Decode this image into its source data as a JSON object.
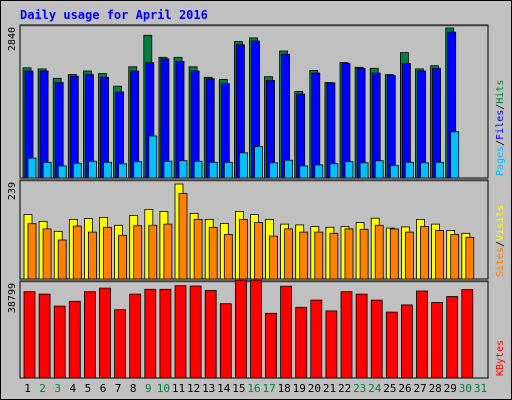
{
  "chart_data": [
    {
      "type": "bar",
      "panel": "top",
      "title": "Daily usage for April 2016",
      "ylabel_parts": [
        "Pages",
        "Files",
        "Hits"
      ],
      "ytick": "2840",
      "ymax": 2840,
      "categories": [
        "1",
        "2",
        "3",
        "4",
        "5",
        "6",
        "7",
        "8",
        "9",
        "10",
        "11",
        "12",
        "13",
        "14",
        "15",
        "16",
        "17",
        "18",
        "19",
        "20",
        "21",
        "22",
        "23",
        "24",
        "25",
        "26",
        "27",
        "28",
        "29",
        "30",
        "31"
      ],
      "weekend_days": [
        "2",
        "3",
        "9",
        "10",
        "16",
        "17",
        "23",
        "24",
        "30",
        "31"
      ],
      "series": [
        {
          "name": "Hits",
          "values": [
            2100,
            2080,
            1900,
            1970,
            2040,
            1990,
            1750,
            2120,
            2720,
            2300,
            2300,
            2120,
            1920,
            1880,
            2600,
            2670,
            1930,
            2420,
            1650,
            2050,
            1820,
            2200,
            2110,
            2090,
            1970,
            2390,
            2080,
            2140,
            2860,
            0,
            0
          ]
        },
        {
          "name": "Files",
          "values": [
            2040,
            2040,
            1820,
            1940,
            1970,
            1920,
            1640,
            2040,
            2200,
            2270,
            2220,
            2040,
            1890,
            1800,
            2540,
            2610,
            1860,
            2360,
            1600,
            2000,
            1810,
            2180,
            2090,
            2000,
            1950,
            2180,
            2040,
            2090,
            2780,
            0,
            0
          ]
        },
        {
          "name": "Pages",
          "values": [
            380,
            300,
            230,
            280,
            320,
            300,
            270,
            310,
            800,
            320,
            330,
            320,
            300,
            300,
            480,
            600,
            290,
            340,
            230,
            250,
            270,
            310,
            290,
            330,
            240,
            300,
            290,
            300,
            880,
            0,
            0
          ]
        }
      ],
      "colors": {
        "Hits": "#008040",
        "Files": "#0000ff",
        "Pages": "#00c0ff"
      }
    },
    {
      "type": "bar",
      "panel": "middle",
      "ylabel_parts": [
        "Sites",
        "Visits"
      ],
      "ytick": "239",
      "ymax": 239,
      "categories": [
        "1",
        "2",
        "3",
        "4",
        "5",
        "6",
        "7",
        "8",
        "9",
        "10",
        "11",
        "12",
        "13",
        "14",
        "15",
        "16",
        "17",
        "18",
        "19",
        "20",
        "21",
        "22",
        "23",
        "24",
        "25",
        "26",
        "27",
        "28",
        "29",
        "30",
        "31"
      ],
      "series": [
        {
          "name": "Visits",
          "values": [
            162,
            145,
            120,
            150,
            152,
            155,
            135,
            160,
            175,
            170,
            239,
            165,
            150,
            140,
            170,
            162,
            150,
            138,
            136,
            132,
            130,
            132,
            142,
            153,
            128,
            131,
            150,
            138,
            122,
            115,
            0
          ]
        },
        {
          "name": "Sites",
          "values": [
            139,
            126,
            98,
            133,
            118,
            130,
            110,
            134,
            135,
            138,
            215,
            150,
            130,
            112,
            150,
            142,
            108,
            126,
            118,
            118,
            115,
            126,
            125,
            135,
            126,
            118,
            132,
            122,
            112,
            105,
            0
          ]
        }
      ],
      "colors": {
        "Visits": "#ffff00",
        "Sites": "#ff8000"
      }
    },
    {
      "type": "bar",
      "panel": "bottom",
      "ylabel_parts": [
        "KBytes"
      ],
      "ytick": "38799",
      "ymax": 38799,
      "categories": [
        "1",
        "2",
        "3",
        "4",
        "5",
        "6",
        "7",
        "8",
        "9",
        "10",
        "11",
        "12",
        "13",
        "14",
        "15",
        "16",
        "17",
        "18",
        "19",
        "20",
        "21",
        "22",
        "23",
        "24",
        "25",
        "26",
        "27",
        "28",
        "29",
        "30",
        "31"
      ],
      "series": [
        {
          "name": "KBytes",
          "values": [
            36000,
            35000,
            30000,
            32000,
            36000,
            37500,
            28500,
            35000,
            37000,
            37000,
            38500,
            38400,
            36500,
            31000,
            40800,
            40800,
            27000,
            38300,
            29500,
            32500,
            28000,
            36000,
            35000,
            32500,
            27500,
            30500,
            36300,
            31500,
            34000,
            36900,
            0
          ]
        }
      ],
      "colors": {
        "KBytes": "#ff0000"
      }
    }
  ]
}
